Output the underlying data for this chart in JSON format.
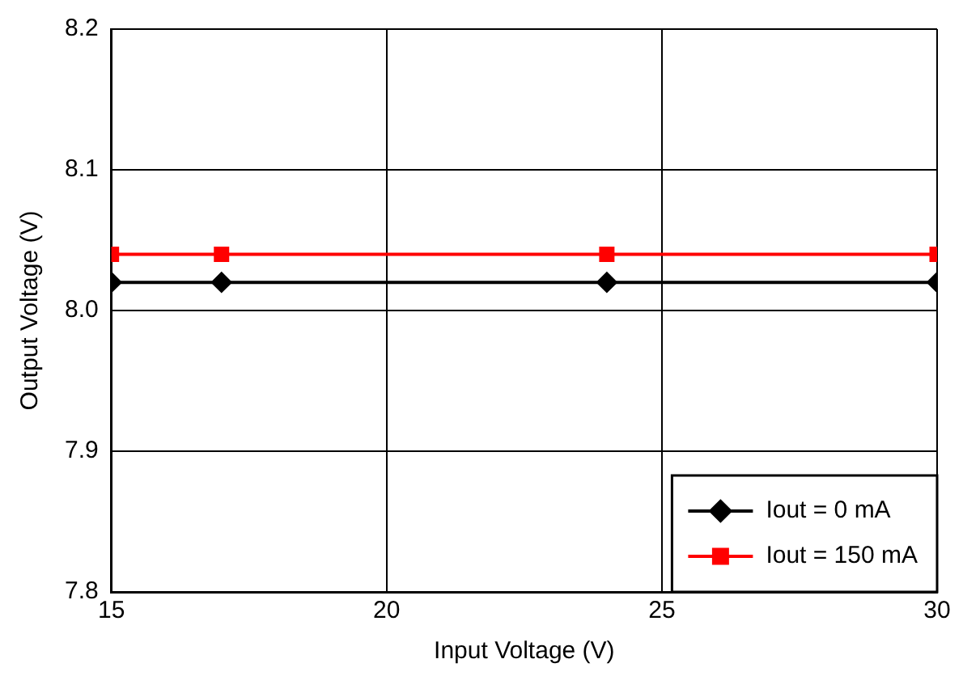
{
  "chart_data": {
    "type": "line",
    "xlabel": "Input Voltage (V)",
    "ylabel": "Output Voltage (V)",
    "x": [
      15,
      17,
      24,
      30
    ],
    "series": [
      {
        "name": "Iout = 0 mA",
        "color": "#000000",
        "values": [
          8.02,
          8.02,
          8.02,
          8.02
        ],
        "marker": "diamond"
      },
      {
        "name": "Iout = 150 mA",
        "color": "#ff0000",
        "values": [
          8.04,
          8.04,
          8.04,
          8.04
        ],
        "marker": "square"
      }
    ],
    "xlim": [
      15,
      30
    ],
    "xticks": [
      15,
      20,
      25,
      30
    ],
    "ylim": [
      7.8,
      8.2
    ],
    "yticks": [
      7.8,
      7.9,
      {
        "value": 8,
        "label": "8.0"
      },
      8.1,
      8.2
    ],
    "grid": true,
    "legend": "bottom right",
    "line_style": "solid"
  }
}
